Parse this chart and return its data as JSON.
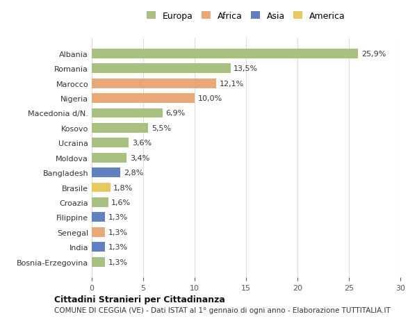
{
  "countries": [
    "Albania",
    "Romania",
    "Marocco",
    "Nigeria",
    "Macedonia d/N.",
    "Kosovo",
    "Ucraina",
    "Moldova",
    "Bangladesh",
    "Brasile",
    "Croazia",
    "Filippine",
    "Senegal",
    "India",
    "Bosnia-Erzegovina"
  ],
  "values": [
    25.9,
    13.5,
    12.1,
    10.0,
    6.9,
    5.5,
    3.6,
    3.4,
    2.8,
    1.8,
    1.6,
    1.3,
    1.3,
    1.3,
    1.3
  ],
  "labels": [
    "25,9%",
    "13,5%",
    "12,1%",
    "10,0%",
    "6,9%",
    "5,5%",
    "3,6%",
    "3,4%",
    "2,8%",
    "1,8%",
    "1,6%",
    "1,3%",
    "1,3%",
    "1,3%",
    "1,3%"
  ],
  "continents": [
    "Europa",
    "Europa",
    "Africa",
    "Africa",
    "Europa",
    "Europa",
    "Europa",
    "Europa",
    "Asia",
    "America",
    "Europa",
    "Asia",
    "Africa",
    "Asia",
    "Europa"
  ],
  "colors": {
    "Europa": "#a8c080",
    "Africa": "#e8a878",
    "Asia": "#6080c0",
    "America": "#e8c860"
  },
  "legend_order": [
    "Europa",
    "Africa",
    "Asia",
    "America"
  ],
  "xlim": [
    0,
    30
  ],
  "xticks": [
    0,
    5,
    10,
    15,
    20,
    25,
    30
  ],
  "title": "Cittadini Stranieri per Cittadinanza",
  "subtitle": "COMUNE DI CEGGIA (VE) - Dati ISTAT al 1° gennaio di ogni anno - Elaborazione TUTTITALIA.IT",
  "bg_color": "#ffffff",
  "grid_color": "#dddddd"
}
